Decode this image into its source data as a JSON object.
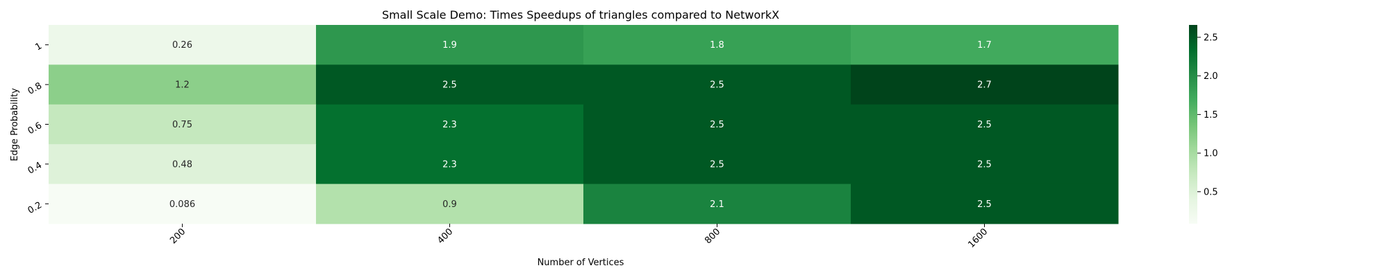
{
  "chart_data": {
    "type": "heatmap",
    "title": "Small Scale Demo: Times Speedups of triangles compared to NetworkX",
    "xlabel": "Number of Vertices",
    "ylabel": "Edge Probability",
    "x_categories": [
      "200",
      "400",
      "800",
      "1600"
    ],
    "y_categories": [
      "1",
      "0.8",
      "0.6",
      "0.4",
      "0.2"
    ],
    "values": [
      [
        0.26,
        1.9,
        1.8,
        1.7
      ],
      [
        1.2,
        2.5,
        2.5,
        2.7
      ],
      [
        0.75,
        2.3,
        2.5,
        2.5
      ],
      [
        0.48,
        2.3,
        2.5,
        2.5
      ],
      [
        0.086,
        0.9,
        2.1,
        2.5
      ]
    ],
    "value_labels": [
      [
        "0.26",
        "1.9",
        "1.8",
        "1.7"
      ],
      [
        "1.2",
        "2.5",
        "2.5",
        "2.7"
      ],
      [
        "0.75",
        "2.3",
        "2.5",
        "2.5"
      ],
      [
        "0.48",
        "2.3",
        "2.5",
        "2.5"
      ],
      [
        "0.086",
        "0.9",
        "2.1",
        "2.5"
      ]
    ],
    "colormap": "Greens",
    "color_range": [
      0.086,
      2.66
    ],
    "colorbar_ticks": [
      0.5,
      1.0,
      1.5,
      2.0,
      2.5
    ],
    "colorbar_tick_labels": [
      "0.5",
      "1.0",
      "1.5",
      "2.0",
      "2.5"
    ]
  }
}
